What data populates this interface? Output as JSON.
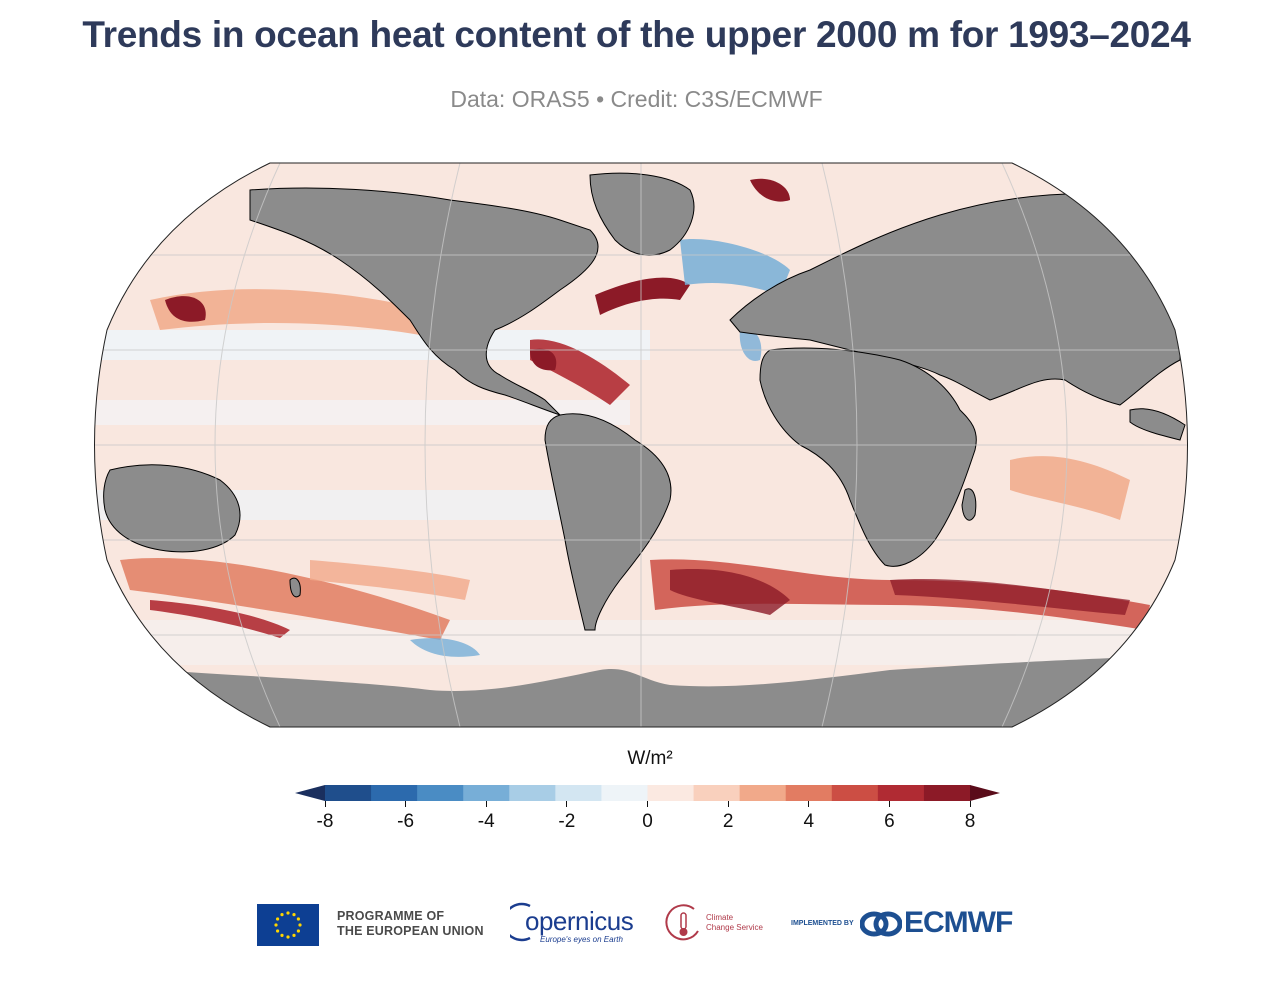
{
  "title": "Trends in ocean heat content of the upper 2000 m for 1993–2024",
  "subtitle": "Data: ORAS5 • Credit: C3S/ECMWF",
  "map": {
    "projection": "Robinson",
    "ocean_base_color": "#f9e7df",
    "land_color": "#8c8c8c",
    "coastline_color": "#000000",
    "gridline_color": "#c8c8c8"
  },
  "colorbar": {
    "units": "W/m²",
    "min": -8,
    "max": 8,
    "step": 1,
    "tick_labels": [
      "-8",
      "-6",
      "-4",
      "-2",
      "0",
      "2",
      "4",
      "6",
      "8"
    ],
    "colors": [
      "#1a2f5e",
      "#1f4e8c",
      "#2c6aad",
      "#4a8cc4",
      "#77aed7",
      "#a8cde6",
      "#d3e6f2",
      "#eef4f8",
      "#fbe9e1",
      "#f9d0bd",
      "#f1a98a",
      "#e27c62",
      "#cc4e44",
      "#b02b33",
      "#8c1a27",
      "#5a0c1a"
    ]
  },
  "footer": {
    "programme_line1": "PROGRAMME OF",
    "programme_line2": "THE EUROPEAN UNION",
    "copernicus": "opernicus",
    "copernicus_tagline": "Europe's eyes on Earth",
    "c3s_line1": "Climate",
    "c3s_line2": "Change Service",
    "implemented_by": "IMPLEMENTED BY",
    "ecmwf": "ECMWF"
  }
}
